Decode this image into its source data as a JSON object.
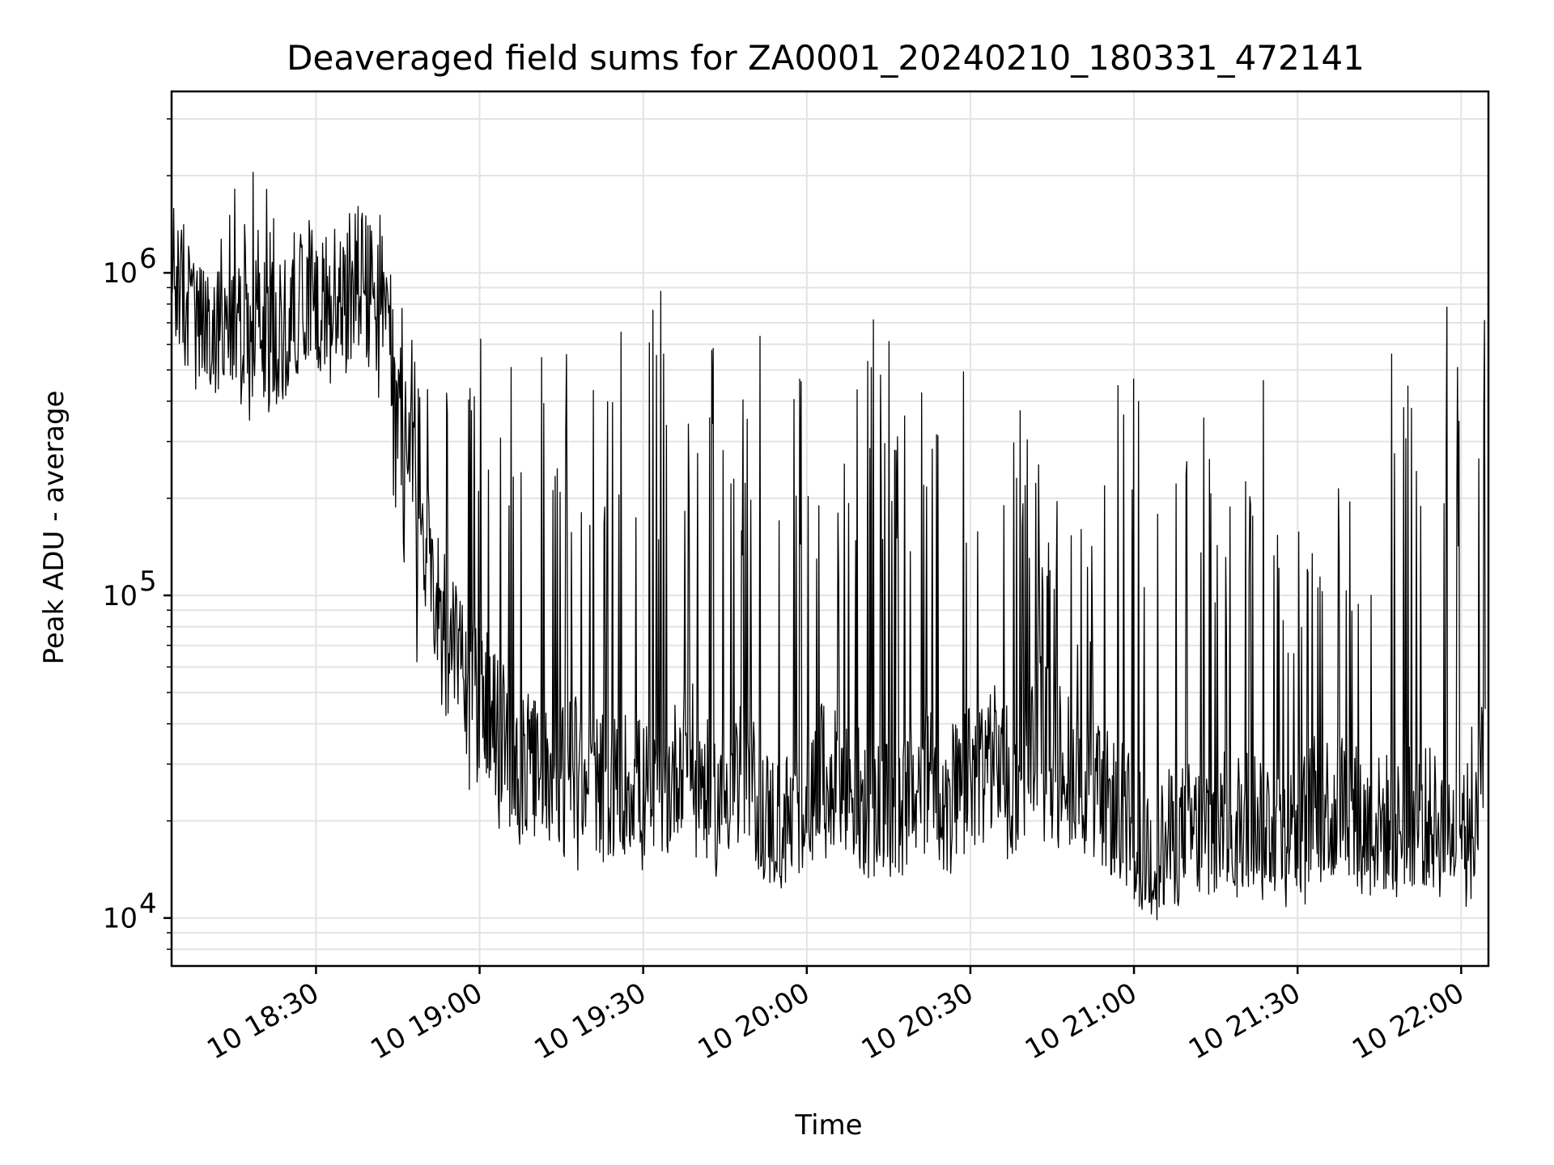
{
  "chart_data": {
    "type": "line",
    "title": "Deaveraged field sums for ZA0001_20240210_180331_472141",
    "xlabel": "Time",
    "ylabel": "Peak ADU - average",
    "xscale": "time",
    "yscale": "log",
    "xlim": [
      "2024-02-10 18:03:31",
      "2024-02-10 22:05:00"
    ],
    "ylim": [
      7100,
      3650000
    ],
    "x_ticks": [
      "10 18:30",
      "10 19:00",
      "10 19:30",
      "10 20:00",
      "10 20:30",
      "10 21:00",
      "10 21:30",
      "10 22:00"
    ],
    "y_ticks": [
      {
        "label": "10",
        "exponent": "4",
        "value": 10000
      },
      {
        "label": "10",
        "exponent": "5",
        "value": 100000
      },
      {
        "label": "10",
        "exponent": "6",
        "value": 1000000
      }
    ],
    "grid": true,
    "line_color": "#000000",
    "series": [
      {
        "sampling_interval_min": 5,
        "x": [
          "2024-02-10 18:03:31",
          "2024-02-10 18:08:00",
          "2024-02-10 18:13:00",
          "2024-02-10 18:18:00",
          "2024-02-10 18:23:00",
          "2024-02-10 18:28:00",
          "2024-02-10 18:33:00",
          "2024-02-10 18:38:00",
          "2024-02-10 18:43:00",
          "2024-02-10 18:48:00",
          "2024-02-10 18:53:00",
          "2024-02-10 18:58:00",
          "2024-02-10 19:03:00",
          "2024-02-10 19:08:00",
          "2024-02-10 19:13:00",
          "2024-02-10 19:18:00",
          "2024-02-10 19:23:00",
          "2024-02-10 19:28:00",
          "2024-02-10 19:33:00",
          "2024-02-10 19:38:00",
          "2024-02-10 19:43:00",
          "2024-02-10 19:48:00",
          "2024-02-10 19:53:00",
          "2024-02-10 19:58:00",
          "2024-02-10 20:03:00",
          "2024-02-10 20:08:00",
          "2024-02-10 20:13:00",
          "2024-02-10 20:18:00",
          "2024-02-10 20:23:00",
          "2024-02-10 20:28:00",
          "2024-02-10 20:33:00",
          "2024-02-10 20:38:00",
          "2024-02-10 20:43:00",
          "2024-02-10 20:48:00",
          "2024-02-10 20:53:00",
          "2024-02-10 20:58:00",
          "2024-02-10 21:03:00",
          "2024-02-10 21:08:00",
          "2024-02-10 21:13:00",
          "2024-02-10 21:18:00",
          "2024-02-10 21:23:00",
          "2024-02-10 21:28:00",
          "2024-02-10 21:33:00",
          "2024-02-10 21:38:00",
          "2024-02-10 21:43:00",
          "2024-02-10 21:48:00",
          "2024-02-10 21:53:00",
          "2024-02-10 21:58:00",
          "2024-02-10 22:04:30"
        ],
        "y": [
          1000000,
          650000,
          600000,
          780000,
          620000,
          900000,
          750000,
          1000000,
          700000,
          200000,
          90000,
          60000,
          40000,
          30000,
          28000,
          30000,
          25000,
          27000,
          22000,
          35000,
          22000,
          30000,
          20000,
          20000,
          28000,
          25000,
          21000,
          22000,
          30000,
          24000,
          35000,
          25000,
          40000,
          30000,
          24000,
          21000,
          16000,
          18000,
          19000,
          20000,
          21000,
          18000,
          22000,
          24000,
          19000,
          20000,
          21000,
          18000,
          30000
        ]
      }
    ],
    "envelope": {
      "sampling_interval_min": 5,
      "upper": [
        2300000,
        1000000,
        1500000,
        2700000,
        1400000,
        1300000,
        1400000,
        1850000,
        1500000,
        600000,
        1000000,
        500000,
        1000000,
        900000,
        500000,
        900000,
        400000,
        1000000,
        900000,
        500000,
        600000,
        400000,
        900000,
        800000,
        600000,
        400000,
        800000,
        500000,
        900000,
        500000,
        1000000,
        500000,
        250000,
        180000,
        160000,
        600000,
        380000,
        250000,
        500000,
        180000,
        950000,
        180000,
        160000,
        350000,
        120000,
        900000,
        400000,
        950000,
        900000
      ],
      "lower": [
        460000,
        480000,
        480000,
        310000,
        380000,
        400000,
        520000,
        450000,
        300000,
        60000,
        35000,
        25000,
        19000,
        16000,
        15000,
        14000,
        15000,
        13500,
        13000,
        13500,
        15000,
        14000,
        13000,
        13500,
        14000,
        13000,
        14000,
        13500,
        14000,
        13500,
        15000,
        14500,
        17000,
        16000,
        15000,
        13000,
        9500,
        10500,
        11000,
        11000,
        11500,
        10500,
        11000,
        10200,
        11000,
        11500,
        11000,
        11000,
        10500
      ]
    }
  }
}
